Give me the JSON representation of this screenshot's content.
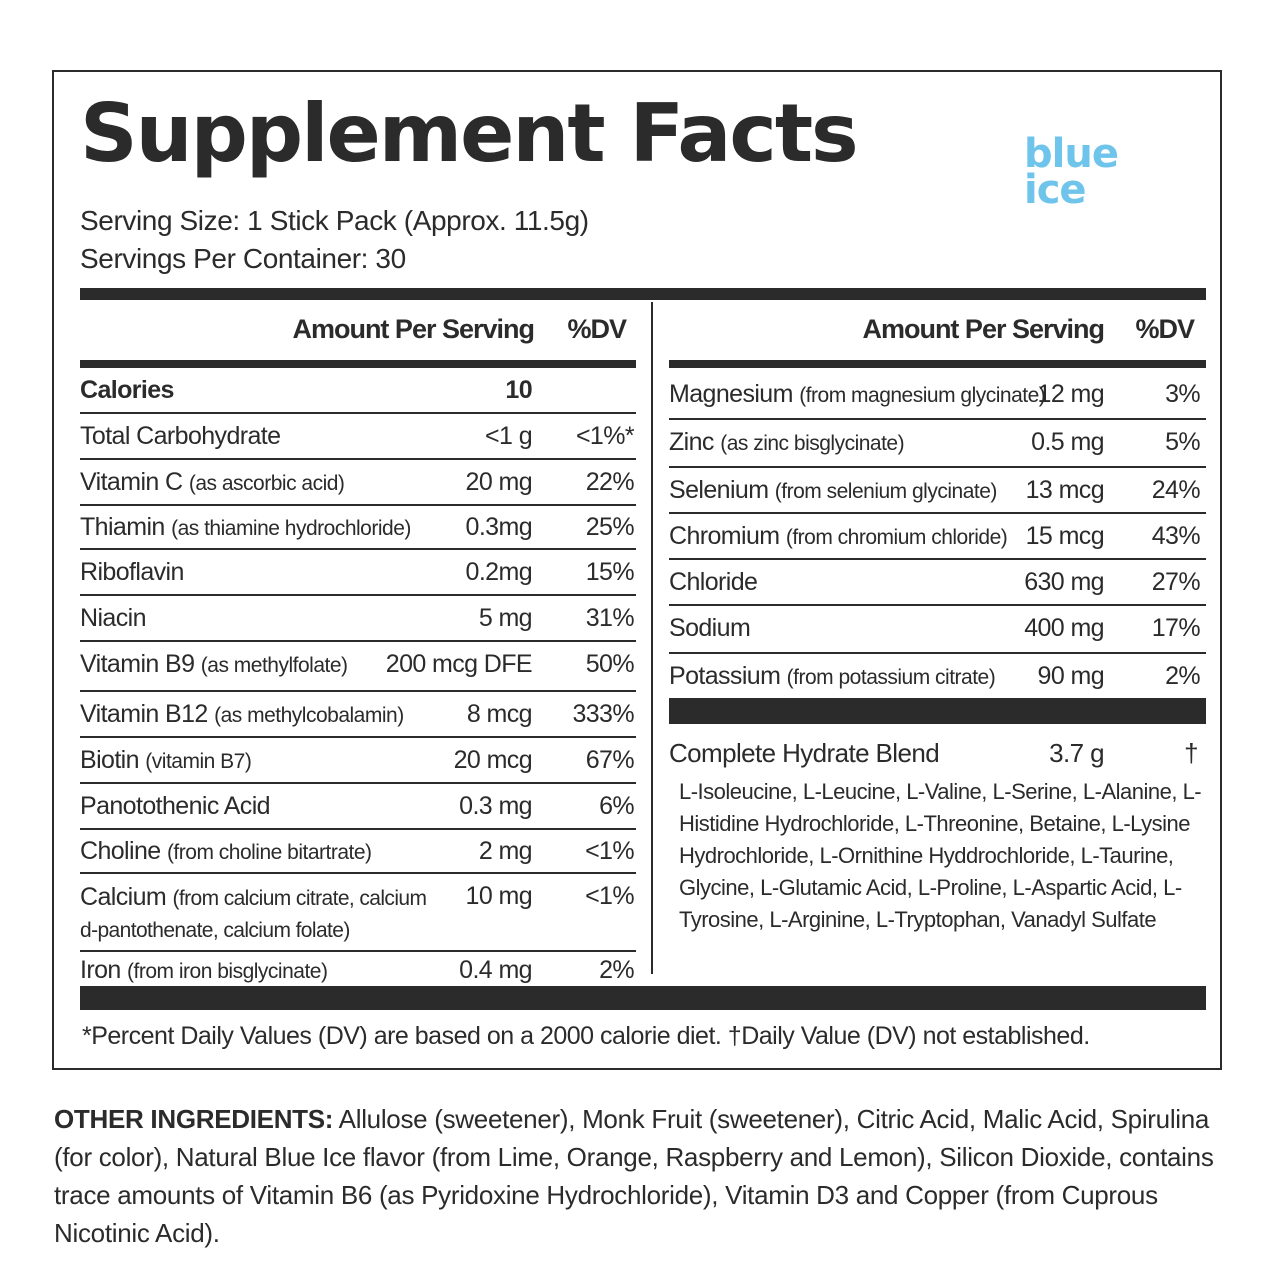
{
  "title": "Supplement Facts",
  "brand": {
    "line1": "blue",
    "line2": "ice",
    "color": "#6ec4ea"
  },
  "serving": {
    "size": "Serving Size: 1 Stick Pack (Approx. 11.5g)",
    "per_container": "Servings Per Container: 30"
  },
  "headers": {
    "amount": "Amount Per Serving",
    "dv": "%DV"
  },
  "left_rows": [
    {
      "name": "Calories",
      "note": "",
      "amount": "10",
      "dv": ""
    },
    {
      "name": "Total Carbohydrate",
      "note": "",
      "amount": "<1 g",
      "dv": "<1%*"
    },
    {
      "name": "Vitamin C",
      "note": "(as ascorbic acid)",
      "amount": "20 mg",
      "dv": "22%"
    },
    {
      "name": "Thiamin",
      "note": "(as thiamine hydrochloride)",
      "amount": "0.3mg",
      "dv": "25%"
    },
    {
      "name": "Riboflavin",
      "note": "",
      "amount": "0.2mg",
      "dv": "15%"
    },
    {
      "name": "Niacin",
      "note": "",
      "amount": "5 mg",
      "dv": "31%"
    },
    {
      "name": "Vitamin B9",
      "note": "(as methylfolate)",
      "amount": "200 mcg DFE",
      "dv": "50%"
    },
    {
      "name": "Vitamin B12",
      "note": "(as methylcobalamin)",
      "amount": "8 mcg",
      "dv": "333%"
    },
    {
      "name": "Biotin",
      "note": "(vitamin B7)",
      "amount": "20 mcg",
      "dv": "67%"
    },
    {
      "name": "Panotothenic Acid",
      "note": "",
      "amount": "0.3 mg",
      "dv": "6%"
    },
    {
      "name": "Choline",
      "note": "(from choline bitartrate)",
      "amount": "2 mg",
      "dv": "<1%"
    },
    {
      "name": "Calcium",
      "note": "(from calcium citrate, calcium d-pantothenate, calcium folate)",
      "amount": "10 mg",
      "dv": "<1%"
    },
    {
      "name": "Iron",
      "note": "(from iron bisglycinate)",
      "amount": "0.4 mg",
      "dv": "2%"
    }
  ],
  "right_rows": [
    {
      "name": "Magnesium",
      "note": "(from magnesium glycinate)",
      "amount": "12 mg",
      "dv": "3%"
    },
    {
      "name": "Zinc",
      "note": "(as zinc bisglycinate)",
      "amount": "0.5 mg",
      "dv": "5%"
    },
    {
      "name": "Selenium",
      "note": "(from selenium glycinate)",
      "amount": "13 mcg",
      "dv": "24%"
    },
    {
      "name": "Chromium",
      "note": "(from chromium chloride)",
      "amount": "15 mcg",
      "dv": "43%"
    },
    {
      "name": "Chloride",
      "note": "",
      "amount": "630 mg",
      "dv": "27%"
    },
    {
      "name": "Sodium",
      "note": "",
      "amount": "400 mg",
      "dv": "17%"
    },
    {
      "name": "Potassium",
      "note": "(from potassium citrate)",
      "amount": "90 mg",
      "dv": "2%"
    }
  ],
  "blend": {
    "name": "Complete Hydrate Blend",
    "amount": "3.7 g",
    "dv": "†",
    "ingredients": "L-Isoleucine, L-Leucine, L-Valine, L-Serine, L-Alanine, L-Histidine Hydrochloride, L-Threonine, Betaine, L-Lysine Hydrochloride, L-Ornithine Hyddrochloride, L-Taurine, Glycine, L-Glutamic Acid, L-Proline, L-Aspartic Acid, L-Tyrosine, L-Arginine, L-Tryptophan, Vanadyl Sulfate"
  },
  "footnote": "*Percent Daily Values (DV) are based on a 2000 calorie diet.  †Daily Value (DV) not established.",
  "other_ingredients": {
    "label": "OTHER INGREDIENTS:",
    "text": "Allulose (sweetener), Monk Fruit (sweetener), Citric Acid, Malic Acid, Spirulina (for color), Natural Blue Ice flavor (from Lime, Orange, Raspberry and Lemon), Silicon Dioxide, contains trace amounts of Vitamin B6 (as Pyridoxine Hydrochloride), Vitamin D3 and Copper (from Cuprous Nicotinic Acid)."
  }
}
